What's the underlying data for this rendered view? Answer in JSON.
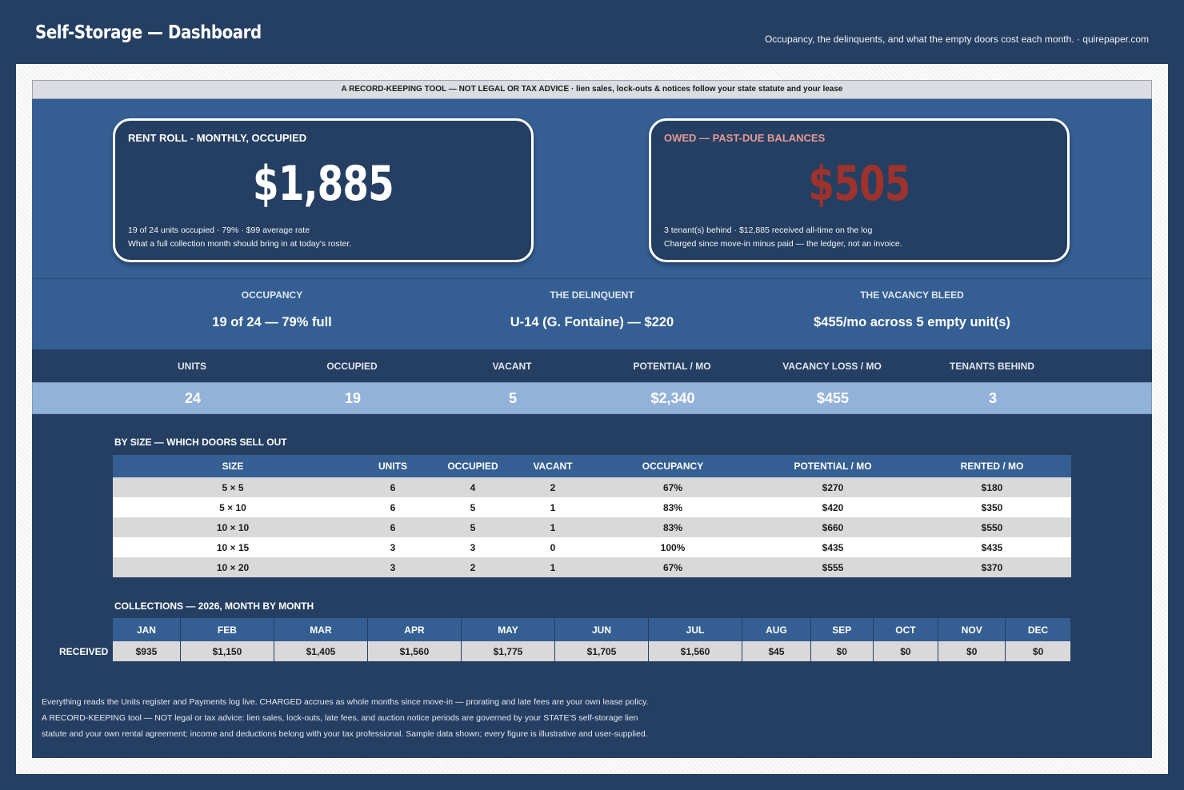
{
  "header": {
    "title": "Self-Storage — Dashboard",
    "subtitle": "Occupancy, the delinquents, and what the empty doors cost each month.  ·  quirepaper.com"
  },
  "notice": "A RECORD-KEEPING TOOL — NOT LEGAL OR TAX ADVICE  ·  lien sales, lock-outs & notices follow your state statute and your lease",
  "rent_card": {
    "label": "RENT ROLL - MONTHLY, OCCUPIED",
    "value": "$1,885",
    "note1": "19 of 24 units occupied  ·  79%  ·  $99 average rate",
    "note2": "What a full collection month should bring in at today's roster."
  },
  "owed_card": {
    "label": "OWED — PAST-DUE BALANCES",
    "value": "$505",
    "note1": "3 tenant(s) behind  ·  $12,885 received all-time on the log",
    "note2": "Charged since move-in minus paid — the ledger, not an invoice."
  },
  "insights": [
    {
      "label": "OCCUPANCY",
      "value": "19 of 24 — 79% full"
    },
    {
      "label": "THE DELINQUENT",
      "value": "U-14 (G. Fontaine) — $220"
    },
    {
      "label": "THE VACANCY BLEED",
      "value": "$455/mo across 5 empty unit(s)"
    }
  ],
  "kpis": [
    {
      "label": "UNITS",
      "value": "24"
    },
    {
      "label": "OCCUPIED",
      "value": "19"
    },
    {
      "label": "VACANT",
      "value": "5"
    },
    {
      "label": "POTENTIAL / MO",
      "value": "$2,340"
    },
    {
      "label": "VACANCY LOSS / MO",
      "value": "$455"
    },
    {
      "label": "TENANTS BEHIND",
      "value": "3"
    }
  ],
  "by_size": {
    "title": "BY SIZE — WHICH DOORS SELL OUT",
    "headers": [
      "SIZE",
      "UNITS",
      "OCCUPIED",
      "VACANT",
      "OCCUPANCY",
      "POTENTIAL / MO",
      "RENTED / MO"
    ],
    "rows": [
      [
        "5 × 5",
        "6",
        "4",
        "2",
        "67%",
        "$270",
        "$180"
      ],
      [
        "5 × 10",
        "6",
        "5",
        "1",
        "83%",
        "$420",
        "$350"
      ],
      [
        "10 × 10",
        "6",
        "5",
        "1",
        "83%",
        "$660",
        "$550"
      ],
      [
        "10 × 15",
        "3",
        "3",
        "0",
        "100%",
        "$435",
        "$435"
      ],
      [
        "10 × 20",
        "3",
        "2",
        "1",
        "67%",
        "$555",
        "$370"
      ]
    ]
  },
  "collections": {
    "title": "COLLECTIONS — 2026, MONTH BY MONTH",
    "row_label": "RECEIVED",
    "months": [
      "JAN",
      "FEB",
      "MAR",
      "APR",
      "MAY",
      "JUN",
      "JUL",
      "AUG",
      "SEP",
      "OCT",
      "NOV",
      "DEC"
    ],
    "values": [
      "$935",
      "$1,150",
      "$1,405",
      "$1,560",
      "$1,775",
      "$1,705",
      "$1,560",
      "$45",
      "$0",
      "$0",
      "$0",
      "$0"
    ]
  },
  "footer": [
    "Everything reads the Units register and Payments log live. CHARGED accrues as whole months since move-in — prorating and late fees are your own lease policy.",
    "A RECORD-KEEPING tool — NOT legal or tax advice: lien sales, lock-outs, late fees, and auction notice periods are governed by your STATE'S self-storage lien",
    "statute and your own rental agreement; income and deductions belong with your tax professional. Sample data shown; every figure is illustrative and user-supplied."
  ]
}
